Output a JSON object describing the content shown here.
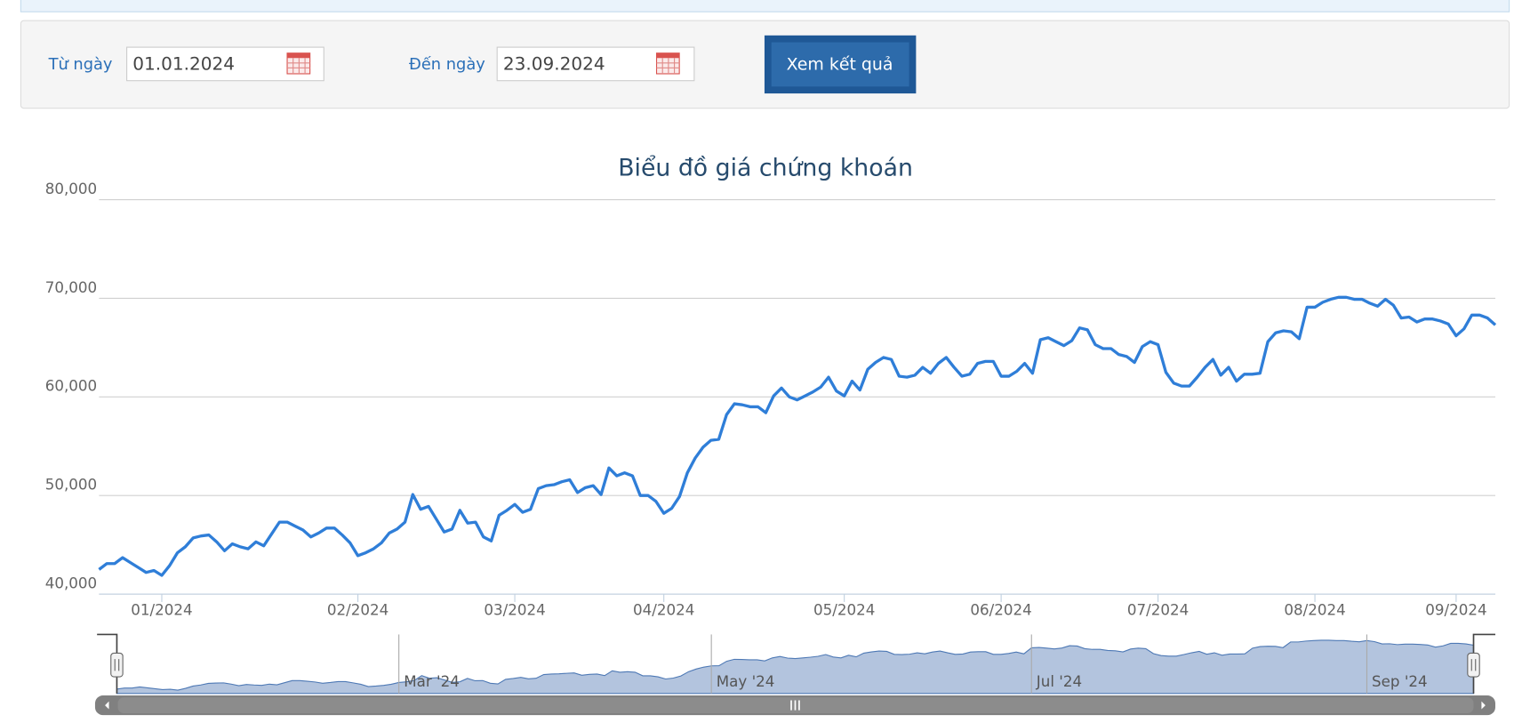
{
  "filter": {
    "from_label": "Từ ngày",
    "from_value": "01.01.2024",
    "to_label": "Đến ngày",
    "to_value": "23.09.2024",
    "button": "Xem kết quả"
  },
  "chart_data": {
    "type": "line",
    "title": "Biểu đồ giá chứng khoán",
    "series": [
      {
        "color": "#2f7ed8",
        "values": [
          42500,
          43100,
          43100,
          43700,
          43200,
          42700,
          42200,
          42400,
          41900,
          42900,
          44200,
          44800,
          45700,
          45900,
          46000,
          45300,
          44400,
          45100,
          44800,
          44600,
          45300,
          44900,
          46100,
          47300,
          47300,
          46900,
          46500,
          45800,
          46200,
          46700,
          46700,
          46000,
          45200,
          43900,
          44200,
          44600,
          45200,
          46200,
          46600,
          47300,
          50100,
          48600,
          48900,
          47600,
          46300,
          46600,
          48500,
          47200,
          47300,
          45800,
          45400,
          48000,
          48500,
          49100,
          48300,
          48600,
          50700,
          51000,
          51100,
          51400,
          51600,
          50300,
          50800,
          51000,
          50100,
          52800,
          52000,
          52300,
          52000,
          50000,
          50000,
          49400,
          48200,
          48700,
          49900,
          52300,
          53800,
          54900,
          55600,
          55700,
          58200,
          59300,
          59200,
          59000,
          59000,
          58400,
          60100,
          60900,
          60000,
          59700,
          60100,
          60500,
          61000,
          62000,
          60600,
          60100,
          61600,
          60700,
          62800,
          63500,
          64000,
          63800,
          62100,
          62000,
          62200,
          63000,
          62400,
          63400,
          64000,
          63000,
          62100,
          62300,
          63400,
          63600,
          63600,
          62100,
          62100,
          62600,
          63400,
          62400,
          65800,
          66000,
          65600,
          65200,
          65700,
          67000,
          66800,
          65300,
          64900,
          64900,
          64300,
          64100,
          63500,
          65100,
          65600,
          65300,
          62500,
          61400,
          61100,
          61100,
          62000,
          63000,
          63800,
          62200,
          63000,
          61600,
          62300,
          62300,
          62400,
          65600,
          66500,
          66700,
          66600,
          65900,
          69100,
          69100,
          69600,
          69900,
          70100,
          70100,
          69900,
          69900,
          69500,
          69200,
          69900,
          69300,
          68000,
          68100,
          67600,
          67900,
          67900,
          67700,
          67400,
          66200,
          66900,
          68300,
          68300,
          68000,
          67300
        ]
      }
    ],
    "ylim": [
      40000,
      80000
    ],
    "yticks": [
      {
        "value": 40000,
        "label": "40,000"
      },
      {
        "value": 50000,
        "label": "50,000"
      },
      {
        "value": 60000,
        "label": "60,000"
      },
      {
        "value": 70000,
        "label": "70,000"
      },
      {
        "value": 80000,
        "label": "80,000"
      }
    ],
    "xticks": [
      {
        "value": 8,
        "label": "01/2024"
      },
      {
        "value": 33,
        "label": "02/2024"
      },
      {
        "value": 53,
        "label": "03/2024"
      },
      {
        "value": 72,
        "label": "04/2024"
      },
      {
        "value": 95,
        "label": "05/2024"
      },
      {
        "value": 115,
        "label": "06/2024"
      },
      {
        "value": 135,
        "label": "07/2024"
      },
      {
        "value": 155,
        "label": "08/2024"
      },
      {
        "value": 173,
        "label": "09/2024"
      }
    ],
    "grid": true,
    "navigator": {
      "ticks": [
        {
          "value": 37,
          "label": "Mar '24"
        },
        {
          "value": 78,
          "label": "May '24"
        },
        {
          "value": 120,
          "label": "Jul '24"
        },
        {
          "value": 164,
          "label": "Sep '24"
        }
      ]
    }
  }
}
